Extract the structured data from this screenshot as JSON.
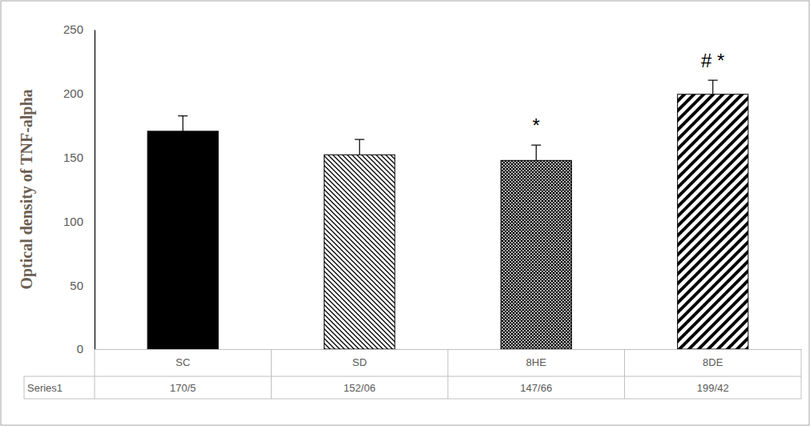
{
  "chart_data": {
    "type": "bar",
    "y_label": "Optical density of TNF-alpha",
    "categories": [
      "SC",
      "SD",
      "8HE",
      "8DE"
    ],
    "series": [
      {
        "name": "Series1",
        "color": "#000000",
        "values": [
          170.5,
          152.06,
          147.66,
          199.42
        ],
        "value_labels": [
          "170/5",
          "152/06",
          "147/66",
          "199/42"
        ],
        "errors": [
          12,
          12,
          12,
          11
        ]
      }
    ],
    "annotations": [
      null,
      null,
      "*",
      "# *"
    ],
    "ylim": [
      0,
      250
    ],
    "yticks": [
      0,
      50,
      100,
      150,
      200,
      250
    ],
    "grid": false,
    "data_labels": true
  }
}
